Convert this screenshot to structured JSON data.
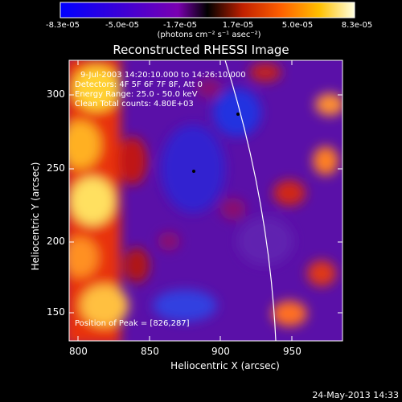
{
  "colorbar": {
    "ticks": [
      "-8.3e-05",
      "-5.0e-05",
      "-1.7e-05",
      "1.7e-05",
      "5.0e-05",
      "8.3e-05"
    ],
    "units": "(photons cm⁻² s⁻¹ asec⁻²)"
  },
  "title": "Reconstructed RHESSI Image",
  "info": {
    "time": "9-Jul-2003 14:20:10.000 to 14:26:10.000",
    "detectors": "Detectors: 4F 5F 6F 7F 8F, Att 0",
    "energy": "Energy Range: 25.0 - 50.0 keV",
    "clean": "Clean    Total counts: 4.80E+03",
    "peak": "Position of Peak = [826,287]"
  },
  "axes": {
    "xlabel": "Heliocentric X (arcsec)",
    "ylabel": "Heliocentric Y (arcsec)",
    "xticks": [
      "800",
      "850",
      "900",
      "950"
    ],
    "yticks": [
      "300",
      "250",
      "200",
      "150"
    ]
  },
  "footer": "24-May-2013 14:33"
}
